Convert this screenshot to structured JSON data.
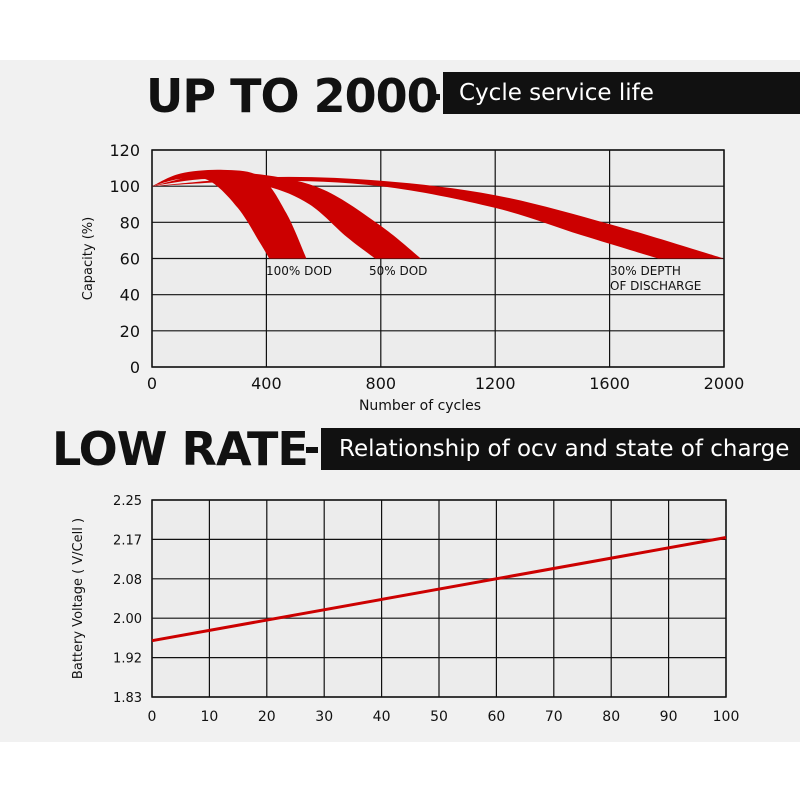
{
  "header1": {
    "headline": "UP TO 2000",
    "tag": "Cycle service life"
  },
  "header2": {
    "headline": "LOW RATE",
    "tag": "Relationship of ocv and state of charge"
  },
  "colors": {
    "curve": "#cc0000",
    "grid": "#111111",
    "plot_bg": "#ececec",
    "tag_bg": "#111111"
  },
  "chart_data": [
    {
      "type": "area",
      "title": "",
      "xlabel": "Number of cycles",
      "ylabel": "Capacity (%)",
      "xlim": [
        0,
        2000
      ],
      "ylim": [
        0,
        120
      ],
      "x_ticks": [
        0,
        400,
        800,
        1200,
        1600,
        2000
      ],
      "y_ticks": [
        0,
        20,
        40,
        60,
        80,
        100,
        120
      ],
      "grid": true,
      "series": [
        {
          "name": "100% DOD",
          "upper": [
            [
              0,
              100
            ],
            [
              100,
              107
            ],
            [
              250,
              109
            ],
            [
              380,
              105
            ],
            [
              470,
              85
            ],
            [
              540,
              60
            ]
          ],
          "lower": [
            [
              0,
              100
            ],
            [
              100,
              104
            ],
            [
              200,
              103
            ],
            [
              300,
              88
            ],
            [
              380,
              68
            ],
            [
              410,
              60
            ]
          ]
        },
        {
          "name": "50% DOD",
          "upper": [
            [
              0,
              100
            ],
            [
              200,
              107
            ],
            [
              400,
              106
            ],
            [
              600,
              98
            ],
            [
              800,
              78
            ],
            [
              940,
              60
            ]
          ],
          "lower": [
            [
              0,
              100
            ],
            [
              200,
              104
            ],
            [
              400,
              100
            ],
            [
              550,
              90
            ],
            [
              680,
              72
            ],
            [
              780,
              60
            ]
          ]
        },
        {
          "name": "30% DEPTH OF DISCHARGE",
          "upper": [
            [
              0,
              100
            ],
            [
              400,
              105
            ],
            [
              800,
              103
            ],
            [
              1200,
              95
            ],
            [
              1600,
              79
            ],
            [
              2000,
              60
            ]
          ],
          "lower": [
            [
              0,
              100
            ],
            [
              400,
              103
            ],
            [
              800,
              100
            ],
            [
              1200,
              88
            ],
            [
              1500,
              73
            ],
            [
              1770,
              60
            ]
          ]
        }
      ],
      "label_lines": [
        [
          "100% DOD"
        ],
        [
          "50% DOD"
        ],
        [
          "30% DEPTH",
          "OF DISCHARGE"
        ]
      ]
    },
    {
      "type": "line",
      "title": "",
      "xlabel": "",
      "ylabel": "Battery Voltage ( V/Cell )",
      "xlim": [
        0,
        100
      ],
      "ylim": [
        1.83,
        2.25
      ],
      "x_ticks": [
        0,
        10,
        20,
        30,
        40,
        50,
        60,
        70,
        80,
        90,
        100
      ],
      "y_ticks": [
        "1.83",
        "1.92",
        "2.00",
        "2.08",
        "2.17",
        "2.25"
      ],
      "grid": true,
      "series": [
        {
          "name": "",
          "x": [
            0,
            100
          ],
          "y": [
            1.95,
            2.17
          ]
        }
      ]
    }
  ]
}
